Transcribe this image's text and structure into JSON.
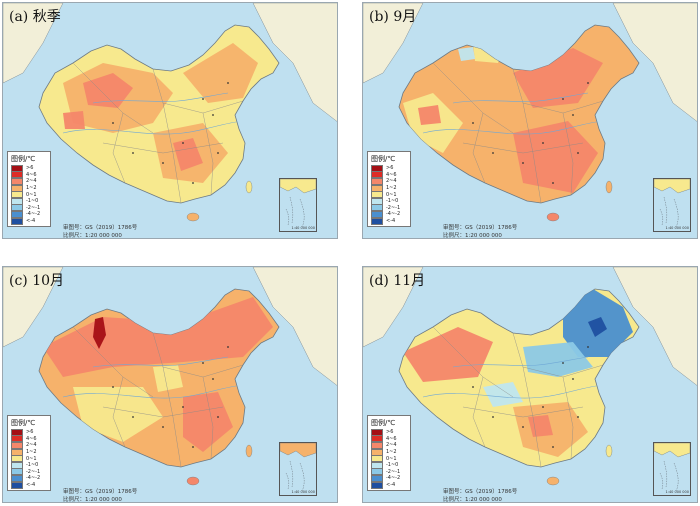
{
  "panels": [
    {
      "id": "a",
      "title": "(a) 秋季",
      "note_line1": "审图号：GS（2019）1786号",
      "note_line2": "比例尺：1:20 000 000",
      "inset_note": "1:40 000 000"
    },
    {
      "id": "b",
      "title": "(b) 9月",
      "note_line1": "审图号：GS（2019）1786号",
      "note_line2": "比例尺：1:20 000 000",
      "inset_note": "1:40 000 000"
    },
    {
      "id": "c",
      "title": "(c) 10月",
      "note_line1": "审图号：GS（2019）1786号",
      "note_line2": "比例尺：1:20 000 000",
      "inset_note": "1:40 000 000"
    },
    {
      "id": "d",
      "title": "(d) 11月",
      "note_line1": "审图号：GS（2019）1786号",
      "note_line2": "比例尺：1:20 000 000",
      "inset_note": "1:40 000 000"
    }
  ],
  "legend": {
    "title": "图例/℃",
    "items": [
      {
        "label": ">6",
        "color": "#a50f15"
      },
      {
        "label": "4~6",
        "color": "#de2d26"
      },
      {
        "label": "2~4",
        "color": "#f4876a"
      },
      {
        "label": "1~2",
        "color": "#f6b26b"
      },
      {
        "label": "0~1",
        "color": "#f7e98e"
      },
      {
        "label": "-1~0",
        "color": "#bfe6ef"
      },
      {
        "label": "-2~-1",
        "color": "#8cc9e6"
      },
      {
        "label": "-4~-2",
        "color": "#4a8fcf"
      },
      {
        "label": "<-4",
        "color": "#1f4fa0"
      }
    ]
  },
  "colors": {
    "sea": "#bfe0f0",
    "land_neutral": "#f2efd8",
    "border": "#6d7a84"
  }
}
